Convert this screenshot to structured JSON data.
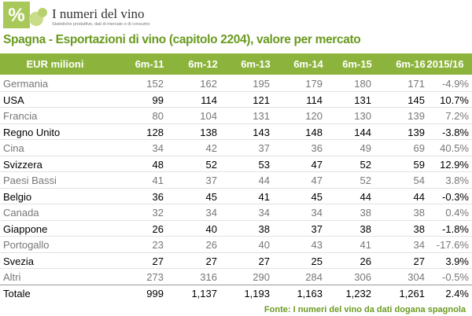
{
  "header": {
    "brand": "I numeri del vino",
    "tagline": "Statistiche produttive, dati di mercato e di consumo"
  },
  "title": "Spagna - Esportazioni di vino (capitolo 2204), valore per mercato",
  "table": {
    "columns": [
      "EUR milioni",
      "6m-11",
      "6m-12",
      "6m-13",
      "6m-14",
      "6m-15",
      "6m-16",
      "2015/16"
    ],
    "rows": [
      [
        "Germania",
        "152",
        "162",
        "195",
        "179",
        "180",
        "171",
        "-4.9%"
      ],
      [
        "USA",
        "99",
        "114",
        "121",
        "114",
        "131",
        "145",
        "10.7%"
      ],
      [
        "Francia",
        "80",
        "104",
        "131",
        "120",
        "130",
        "139",
        "7.2%"
      ],
      [
        "Regno Unito",
        "128",
        "138",
        "143",
        "148",
        "144",
        "139",
        "-3.8%"
      ],
      [
        "Cina",
        "34",
        "42",
        "37",
        "36",
        "49",
        "69",
        "40.5%"
      ],
      [
        "Svizzera",
        "48",
        "52",
        "53",
        "47",
        "52",
        "59",
        "12.9%"
      ],
      [
        "Paesi Bassi",
        "41",
        "37",
        "44",
        "47",
        "52",
        "54",
        "3.8%"
      ],
      [
        "Belgio",
        "36",
        "45",
        "41",
        "45",
        "44",
        "44",
        "-0.3%"
      ],
      [
        "Canada",
        "32",
        "34",
        "34",
        "34",
        "38",
        "38",
        "0.4%"
      ],
      [
        "Giappone",
        "26",
        "40",
        "38",
        "37",
        "38",
        "38",
        "-1.8%"
      ],
      [
        "Portogallo",
        "23",
        "26",
        "40",
        "43",
        "41",
        "34",
        "-17.6%"
      ],
      [
        "Svezia",
        "27",
        "27",
        "27",
        "25",
        "26",
        "27",
        "3.9%"
      ],
      [
        "Altri",
        "273",
        "316",
        "290",
        "284",
        "306",
        "304",
        "-0.5%"
      ],
      [
        "Totale",
        "999",
        "1,137",
        "1,193",
        "1,163",
        "1,232",
        "1,261",
        "2.4%"
      ]
    ]
  },
  "source": "Fonte: I numeri del vino da dati dogana spagnola"
}
